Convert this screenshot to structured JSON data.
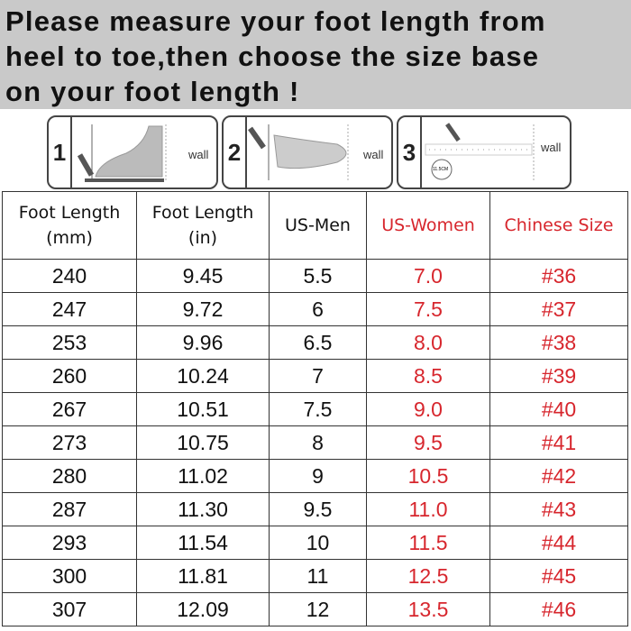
{
  "banner": {
    "lines": [
      "Please measure your foot length from",
      "heel to toe,then choose the size base",
      "on your foot length !"
    ]
  },
  "steps": [
    {
      "number": "1",
      "label": "wall"
    },
    {
      "number": "2",
      "label": "wall"
    },
    {
      "number": "3",
      "label": "wall",
      "ruler_badge": "11.5CM"
    }
  ],
  "table": {
    "headers": [
      [
        "Foot Length",
        "(mm)"
      ],
      [
        "Foot Length",
        "(in)"
      ],
      [
        "US-Men"
      ],
      [
        "US-Women"
      ],
      [
        "Chinese Size"
      ]
    ],
    "rows": [
      [
        "240",
        "9.45",
        "5.5",
        "7.0",
        "#36"
      ],
      [
        "247",
        "9.72",
        "6",
        "7.5",
        "#37"
      ],
      [
        "253",
        "9.96",
        "6.5",
        "8.0",
        "#38"
      ],
      [
        "260",
        "10.24",
        "7",
        "8.5",
        "#39"
      ],
      [
        "267",
        "10.51",
        "7.5",
        "9.0",
        "#40"
      ],
      [
        "273",
        "10.75",
        "8",
        "9.5",
        "#41"
      ],
      [
        "280",
        "11.02",
        "9",
        "10.5",
        "#42"
      ],
      [
        "287",
        "11.30",
        "9.5",
        "11.0",
        "#43"
      ],
      [
        "293",
        "11.54",
        "10",
        "11.5",
        "#44"
      ],
      [
        "300",
        "11.81",
        "11",
        "12.5",
        "#45"
      ],
      [
        "307",
        "12.09",
        "12",
        "13.5",
        "#46"
      ]
    ]
  },
  "colors": {
    "accent_red": "#d7262d",
    "banner_bg": "#c9c9c9"
  }
}
